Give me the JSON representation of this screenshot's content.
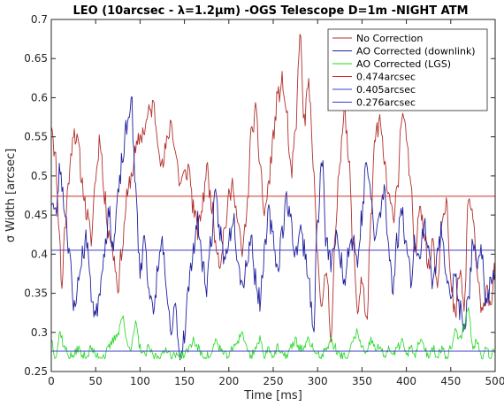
{
  "chart_data": {
    "type": "line",
    "title": "LEO (10arcsec - λ=1.2μm) -OGS Telescope D=1m -NIGHT ATM",
    "xlabel": "Time [ms]",
    "ylabel": "σ Width [arcsec]",
    "xlim": [
      0,
      500
    ],
    "ylim": [
      0.25,
      0.7
    ],
    "x_ticks": [
      0,
      50,
      100,
      150,
      200,
      250,
      300,
      350,
      400,
      450,
      500
    ],
    "y_ticks": [
      0.25,
      0.3,
      0.35,
      0.4,
      0.45,
      0.5,
      0.55,
      0.6,
      0.65,
      0.7
    ],
    "x_tick_labels": [
      "0",
      "50",
      "100",
      "150",
      "200",
      "250",
      "300",
      "350",
      "400",
      "450",
      "500"
    ],
    "y_tick_labels": [
      "0.25",
      "0.3",
      "0.35",
      "0.4",
      "0.45",
      "0.5",
      "0.55",
      "0.6",
      "0.65",
      "0.7"
    ],
    "grid": false,
    "legend_position": "top-right",
    "series": [
      {
        "name": "No Correction",
        "color": "#b0302c",
        "style": "trace",
        "x": [
          0,
          5,
          8,
          12,
          15,
          20,
          25,
          30,
          35,
          40,
          45,
          50,
          55,
          60,
          65,
          70,
          75,
          80,
          85,
          90,
          95,
          100,
          105,
          110,
          115,
          120,
          125,
          130,
          135,
          140,
          145,
          150,
          155,
          160,
          165,
          170,
          175,
          180,
          185,
          190,
          195,
          200,
          205,
          210,
          215,
          220,
          225,
          230,
          235,
          240,
          245,
          250,
          255,
          260,
          265,
          270,
          275,
          280,
          285,
          290,
          295,
          300,
          305,
          310,
          315,
          320,
          325,
          330,
          335,
          340,
          345,
          350,
          355,
          360,
          365,
          370,
          375,
          380,
          385,
          390,
          395,
          400,
          405,
          410,
          415,
          420,
          425,
          430,
          435,
          440,
          445,
          450,
          455,
          460,
          465,
          470,
          475,
          480,
          485,
          490,
          495,
          500
        ],
        "y": [
          0.57,
          0.52,
          0.45,
          0.36,
          0.43,
          0.5,
          0.56,
          0.54,
          0.49,
          0.45,
          0.42,
          0.5,
          0.55,
          0.47,
          0.43,
          0.4,
          0.36,
          0.41,
          0.47,
          0.5,
          0.53,
          0.55,
          0.56,
          0.58,
          0.59,
          0.55,
          0.51,
          0.54,
          0.57,
          0.53,
          0.49,
          0.5,
          0.51,
          0.46,
          0.43,
          0.46,
          0.51,
          0.47,
          0.42,
          0.39,
          0.43,
          0.47,
          0.49,
          0.44,
          0.4,
          0.45,
          0.55,
          0.58,
          0.52,
          0.45,
          0.49,
          0.55,
          0.6,
          0.62,
          0.58,
          0.5,
          0.55,
          0.68,
          0.57,
          0.62,
          0.51,
          0.4,
          0.33,
          0.38,
          0.3,
          0.42,
          0.52,
          0.59,
          0.52,
          0.41,
          0.33,
          0.37,
          0.31,
          0.44,
          0.55,
          0.57,
          0.52,
          0.47,
          0.45,
          0.49,
          0.58,
          0.55,
          0.48,
          0.4,
          0.47,
          0.43,
          0.38,
          0.42,
          0.36,
          0.45,
          0.47,
          0.36,
          0.32,
          0.38,
          0.33,
          0.47,
          0.45,
          0.37,
          0.32,
          0.36,
          0.34,
          0.38
        ]
      },
      {
        "name": "AO Corrected (downlink)",
        "color": "#1f1f9e",
        "style": "trace",
        "x": [
          0,
          5,
          10,
          15,
          20,
          25,
          30,
          35,
          40,
          45,
          50,
          55,
          60,
          65,
          70,
          75,
          80,
          85,
          90,
          95,
          100,
          105,
          110,
          115,
          120,
          125,
          130,
          135,
          140,
          145,
          150,
          155,
          160,
          165,
          170,
          175,
          180,
          185,
          190,
          195,
          200,
          205,
          210,
          215,
          220,
          225,
          230,
          235,
          240,
          245,
          250,
          255,
          260,
          265,
          270,
          275,
          280,
          285,
          290,
          295,
          300,
          305,
          310,
          315,
          320,
          325,
          330,
          335,
          340,
          345,
          350,
          355,
          360,
          365,
          370,
          375,
          380,
          385,
          390,
          395,
          400,
          405,
          410,
          415,
          420,
          425,
          430,
          435,
          440,
          445,
          450,
          455,
          460,
          465,
          470,
          475,
          480,
          485,
          490,
          495,
          500
        ],
        "y": [
          0.47,
          0.45,
          0.51,
          0.46,
          0.41,
          0.33,
          0.36,
          0.4,
          0.42,
          0.35,
          0.32,
          0.36,
          0.41,
          0.45,
          0.41,
          0.47,
          0.52,
          0.56,
          0.6,
          0.48,
          0.38,
          0.42,
          0.36,
          0.32,
          0.38,
          0.42,
          0.34,
          0.3,
          0.33,
          0.27,
          0.3,
          0.36,
          0.41,
          0.44,
          0.39,
          0.36,
          0.42,
          0.47,
          0.43,
          0.39,
          0.42,
          0.45,
          0.4,
          0.36,
          0.39,
          0.42,
          0.37,
          0.34,
          0.4,
          0.45,
          0.42,
          0.38,
          0.43,
          0.47,
          0.44,
          0.4,
          0.43,
          0.41,
          0.37,
          0.3,
          0.44,
          0.52,
          0.41,
          0.39,
          0.42,
          0.4,
          0.37,
          0.41,
          0.42,
          0.39,
          0.45,
          0.52,
          0.47,
          0.42,
          0.45,
          0.48,
          0.41,
          0.36,
          0.42,
          0.46,
          0.41,
          0.37,
          0.42,
          0.39,
          0.44,
          0.41,
          0.36,
          0.4,
          0.43,
          0.38,
          0.35,
          0.37,
          0.33,
          0.3,
          0.35,
          0.41,
          0.38,
          0.4,
          0.34,
          0.36,
          0.38
        ]
      },
      {
        "name": "AO Corrected (LGS)",
        "color": "#1fd71f",
        "style": "trace",
        "x": [
          0,
          5,
          10,
          15,
          20,
          25,
          30,
          35,
          40,
          45,
          50,
          55,
          60,
          65,
          70,
          75,
          80,
          85,
          90,
          95,
          100,
          105,
          110,
          115,
          120,
          125,
          130,
          135,
          140,
          145,
          150,
          155,
          160,
          165,
          170,
          175,
          180,
          185,
          190,
          195,
          200,
          205,
          210,
          215,
          220,
          225,
          230,
          235,
          240,
          245,
          250,
          255,
          260,
          265,
          270,
          275,
          280,
          285,
          290,
          295,
          300,
          305,
          310,
          315,
          320,
          325,
          330,
          335,
          340,
          345,
          350,
          355,
          360,
          365,
          370,
          375,
          380,
          385,
          390,
          395,
          400,
          405,
          410,
          415,
          420,
          425,
          430,
          435,
          440,
          445,
          450,
          455,
          460,
          465,
          470,
          475,
          480,
          485,
          490,
          495,
          500
        ],
        "y": [
          0.29,
          0.27,
          0.3,
          0.28,
          0.27,
          0.27,
          0.28,
          0.27,
          0.27,
          0.28,
          0.27,
          0.27,
          0.27,
          0.28,
          0.29,
          0.3,
          0.32,
          0.29,
          0.28,
          0.31,
          0.28,
          0.27,
          0.28,
          0.27,
          0.27,
          0.27,
          0.28,
          0.27,
          0.27,
          0.27,
          0.27,
          0.28,
          0.29,
          0.28,
          0.27,
          0.27,
          0.27,
          0.29,
          0.28,
          0.27,
          0.27,
          0.28,
          0.29,
          0.3,
          0.28,
          0.27,
          0.28,
          0.29,
          0.27,
          0.28,
          0.27,
          0.28,
          0.27,
          0.27,
          0.28,
          0.29,
          0.28,
          0.28,
          0.29,
          0.28,
          0.27,
          0.27,
          0.28,
          0.29,
          0.28,
          0.27,
          0.27,
          0.27,
          0.29,
          0.3,
          0.28,
          0.27,
          0.29,
          0.28,
          0.28,
          0.27,
          0.28,
          0.27,
          0.28,
          0.29,
          0.27,
          0.28,
          0.27,
          0.29,
          0.28,
          0.27,
          0.28,
          0.27,
          0.28,
          0.27,
          0.28,
          0.3,
          0.29,
          0.31,
          0.33,
          0.28,
          0.29,
          0.27,
          0.28,
          0.27,
          0.28
        ]
      },
      {
        "name": "0.474arcsec",
        "color": "#c9302c",
        "style": "constant",
        "x": [
          0,
          500
        ],
        "y": [
          0.474,
          0.474
        ]
      },
      {
        "name": "0.405arcsec",
        "color": "#3c3cc8",
        "style": "constant",
        "x": [
          0,
          500
        ],
        "y": [
          0.405,
          0.405
        ]
      },
      {
        "name": "0.276arcsec",
        "color": "#3c3cc8",
        "style": "constant",
        "x": [
          0,
          500
        ],
        "y": [
          0.276,
          0.276
        ]
      }
    ]
  }
}
